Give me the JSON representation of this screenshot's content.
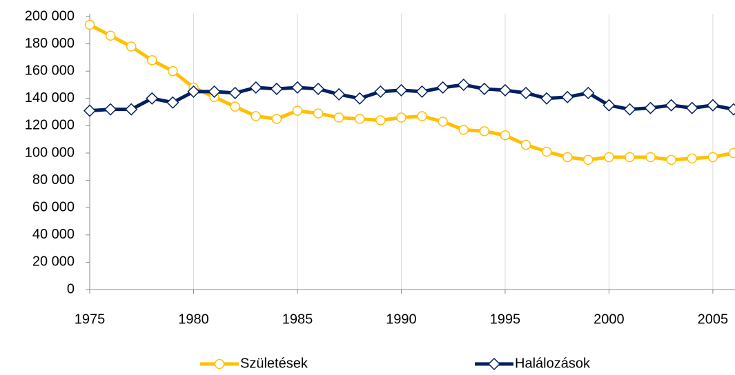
{
  "chart_data": {
    "type": "line",
    "x": [
      1975,
      1976,
      1977,
      1978,
      1979,
      1980,
      1981,
      1982,
      1983,
      1984,
      1985,
      1986,
      1987,
      1988,
      1989,
      1990,
      1991,
      1992,
      1993,
      1994,
      1995,
      1996,
      1997,
      1998,
      1999,
      2000,
      2001,
      2002,
      2003,
      2004,
      2005,
      2006
    ],
    "series": [
      {
        "name": "Születések",
        "color": "#ffc000",
        "marker": "circle",
        "values": [
          194000,
          186000,
          178000,
          168000,
          160000,
          148000,
          141000,
          134000,
          127000,
          125000,
          131000,
          129000,
          126000,
          125000,
          124000,
          126000,
          127000,
          123000,
          117000,
          116000,
          113000,
          106000,
          101000,
          97000,
          95000,
          97000,
          97000,
          97000,
          95000,
          96000,
          97000,
          100000
        ]
      },
      {
        "name": "Halálozások",
        "color": "#002060",
        "marker": "diamond",
        "values": [
          131000,
          132000,
          132000,
          140000,
          137000,
          145000,
          145000,
          144000,
          148000,
          147000,
          148000,
          147000,
          143000,
          140000,
          145000,
          146000,
          145000,
          148000,
          150000,
          147000,
          146000,
          144000,
          140000,
          141000,
          144000,
          135000,
          132000,
          133000,
          135000,
          133000,
          135000,
          132000
        ]
      }
    ],
    "xlim": [
      1975,
      2006
    ],
    "xticks": [
      1975,
      1980,
      1985,
      1990,
      1995,
      2000,
      2005
    ],
    "ylim": [
      0,
      200000
    ],
    "yticks": [
      0,
      {
        "value": 20000,
        "label": "20 000"
      },
      {
        "value": 40000,
        "label": "40 000"
      },
      {
        "value": 60000,
        "label": "60 000"
      },
      {
        "value": 80000,
        "label": "80 000"
      },
      {
        "value": 100000,
        "label": "100 000"
      },
      {
        "value": 120000,
        "label": "120 000"
      },
      {
        "value": 140000,
        "label": "140 000"
      },
      {
        "value": 160000,
        "label": "160 000"
      },
      {
        "value": 180000,
        "label": "180 000"
      },
      {
        "value": 200000,
        "label": "200 000"
      }
    ],
    "grid": "x",
    "legend": "bottom"
  }
}
